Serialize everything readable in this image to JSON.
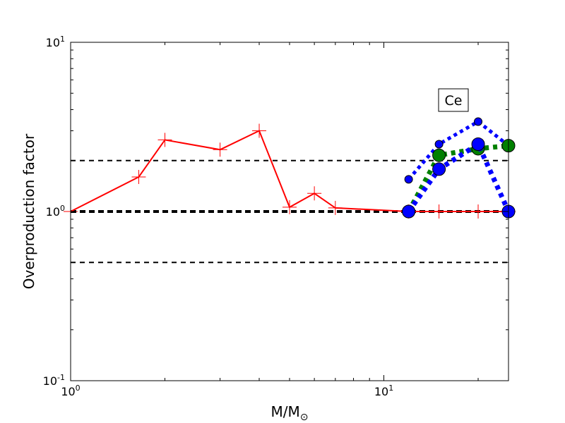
{
  "chart_data": {
    "type": "line",
    "xscale": "log",
    "yscale": "log",
    "xlim": [
      1,
      25
    ],
    "ylim": [
      0.1,
      10
    ],
    "xlabel": "M/M",
    "xlabel_subscript": "⊙",
    "ylabel": "Overproduction factor",
    "xticks": [
      {
        "value": 1,
        "base": "10",
        "exp": "0"
      },
      {
        "value": 10,
        "base": "10",
        "exp": "1"
      }
    ],
    "yticks": [
      {
        "value": 0.1,
        "base": "10",
        "exp": "-1"
      },
      {
        "value": 1,
        "base": "10",
        "exp": "0"
      },
      {
        "value": 10,
        "base": "10",
        "exp": "1"
      }
    ],
    "annotation": "Ce",
    "reference_lines": [
      {
        "y": 2,
        "style": "dashed-thin",
        "color": "#000000"
      },
      {
        "y": 1,
        "style": "dashed-thick",
        "color": "#000000"
      },
      {
        "y": 0.5,
        "style": "dashed-thin",
        "color": "#000000"
      }
    ],
    "series": [
      {
        "color": "#ff0000",
        "style": "solid",
        "marker": "plus",
        "x": [
          1.0,
          1.65,
          2.0,
          3.0,
          4.0,
          5.0,
          6.0,
          7.0,
          12.0,
          15.0,
          20.0,
          25.0
        ],
        "y": [
          1.0,
          1.6,
          2.65,
          2.32,
          3.0,
          1.06,
          1.28,
          1.05,
          1.0,
          1.0,
          1.0,
          1.0
        ]
      },
      {
        "color": "#0000ff",
        "style": "dotted",
        "marker": "circle-small",
        "x": [
          12.0,
          15.0,
          20.0,
          25.0
        ],
        "y": [
          1.55,
          2.5,
          3.4,
          2.45
        ]
      },
      {
        "color": "#008000",
        "style": "dotted-thick",
        "marker": "circle-large",
        "x": [
          12.0,
          15.0,
          20.0,
          25.0
        ],
        "y": [
          1.0,
          2.15,
          2.35,
          2.45
        ]
      },
      {
        "color": "#0000ff",
        "style": "dotted-thick",
        "marker": "circle-large",
        "x": [
          12.0,
          15.0,
          20.0,
          25.0
        ],
        "y": [
          1.0,
          1.78,
          2.5,
          1.0
        ]
      }
    ]
  }
}
